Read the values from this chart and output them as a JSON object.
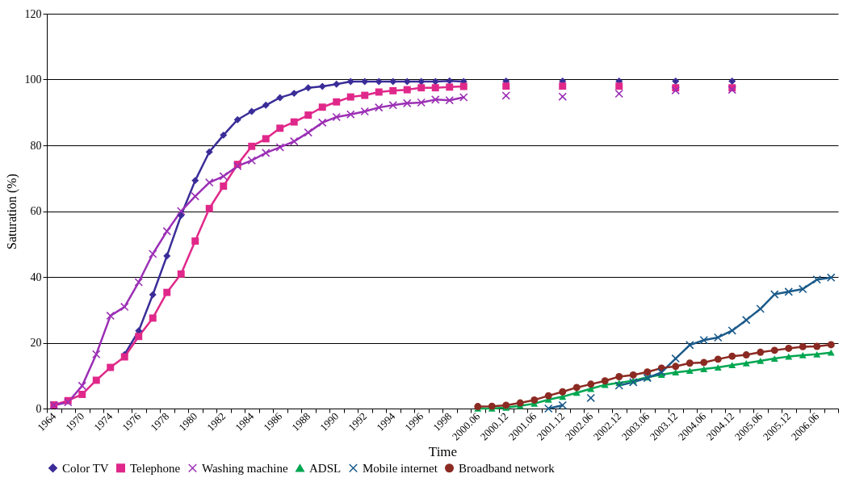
{
  "chart_data": {
    "type": "line",
    "xlabel": "Time",
    "ylabel": "Saturation (%)",
    "categories": [
      "1964",
      null,
      "1970",
      null,
      "1974",
      null,
      "1976",
      null,
      "1978",
      null,
      "1980",
      null,
      "1982",
      null,
      "1984",
      null,
      "1986",
      null,
      "1988",
      null,
      "1990",
      null,
      "1992",
      null,
      "1994",
      null,
      "1996",
      null,
      "1998",
      null,
      "2000.06",
      null,
      "2000.12",
      null,
      "2001.06",
      null,
      "2001.12",
      null,
      "2002.06",
      null,
      "2002.12",
      null,
      "2003.06",
      null,
      "2003.12",
      null,
      "2004.06",
      null,
      "2004.12",
      null,
      "2005.06",
      null,
      "2005.12",
      null,
      "2006.06",
      null
    ],
    "ylim": [
      0,
      120
    ],
    "yticks": [
      0,
      20,
      40,
      60,
      80,
      100,
      120
    ],
    "grid": "y",
    "legend": "bottom",
    "series": [
      {
        "name": "Color TV",
        "color": "#3a2d98",
        "marker": "diamond",
        "values": [
          null,
          null,
          null,
          null,
          null,
          16.4,
          23.6,
          34.6,
          46.4,
          58.7,
          69.3,
          78,
          83.1,
          87.8,
          90.3,
          92.2,
          94.5,
          95.8,
          97.5,
          97.9,
          98.6,
          99.4,
          99.4,
          99.4,
          99.4,
          99.4,
          99.4,
          99.4,
          99.6,
          99.4,
          null,
          null,
          99.5,
          null,
          null,
          null,
          99.5,
          null,
          null,
          null,
          99.5,
          null,
          null,
          null,
          99.5,
          null,
          null,
          null,
          99.5,
          null,
          null,
          null,
          null,
          null,
          null,
          null
        ]
      },
      {
        "name": "Telephone",
        "color": "#e0288a",
        "marker": "square",
        "values": [
          1.1,
          2.4,
          4.3,
          8.6,
          12.5,
          15.7,
          21.9,
          27.5,
          35.3,
          40.9,
          50.9,
          60.8,
          67.6,
          74.2,
          79.7,
          82,
          85.2,
          87.1,
          89.2,
          91.6,
          93.2,
          94.7,
          95.2,
          96.2,
          96.6,
          96.9,
          97.5,
          97.5,
          97.7,
          97.9,
          null,
          null,
          98,
          null,
          null,
          null,
          98,
          null,
          null,
          null,
          98,
          null,
          null,
          null,
          97.5,
          null,
          null,
          null,
          97.5,
          null,
          null,
          null,
          null,
          null,
          null,
          null
        ]
      },
      {
        "name": "Washing machine",
        "color": "#9b2fb5",
        "marker": "cross",
        "values": [
          1,
          1.9,
          6.9,
          16.5,
          28.2,
          30.9,
          38.4,
          47,
          53.9,
          60,
          64.5,
          68.7,
          70.6,
          73.7,
          75.4,
          77.7,
          79.4,
          81.2,
          83.9,
          86.9,
          88.6,
          89.4,
          90.3,
          91.5,
          92.2,
          92.8,
          93,
          93.9,
          93.7,
          94.6,
          null,
          null,
          95.1,
          null,
          null,
          null,
          94.8,
          null,
          null,
          null,
          95.7,
          null,
          null,
          null,
          96.7,
          null,
          null,
          null,
          96.9,
          null,
          null,
          null,
          null,
          null,
          null,
          null
        ]
      },
      {
        "name": "ADSL",
        "color": "#00a650",
        "marker": "triangle",
        "values": [
          null,
          null,
          null,
          null,
          null,
          null,
          null,
          null,
          null,
          null,
          null,
          null,
          null,
          null,
          null,
          null,
          null,
          null,
          null,
          null,
          null,
          null,
          null,
          null,
          null,
          null,
          null,
          null,
          null,
          null,
          0,
          0,
          0.3,
          0.8,
          1.5,
          2.7,
          3.6,
          4.8,
          6,
          7.2,
          7.8,
          8.5,
          9.5,
          10.3,
          11,
          11.5,
          12,
          12.5,
          13.2,
          13.8,
          14.5,
          15.2,
          15.8,
          16.2,
          16.5,
          17
        ]
      },
      {
        "name": "Mobile internet",
        "color": "#1a5a8a",
        "marker": "cross",
        "values": [
          null,
          null,
          null,
          null,
          null,
          null,
          null,
          null,
          null,
          null,
          null,
          null,
          null,
          null,
          null,
          null,
          null,
          null,
          null,
          null,
          null,
          null,
          null,
          null,
          null,
          null,
          null,
          null,
          null,
          null,
          null,
          null,
          null,
          null,
          null,
          0,
          1,
          null,
          3.2,
          null,
          7,
          8,
          9.3,
          11,
          15.2,
          19.3,
          20.8,
          21.6,
          23.7,
          26.9,
          30.3,
          34.7,
          35.5,
          36.3,
          39.2,
          39.8
        ]
      },
      {
        "name": "Broadband network",
        "color": "#8b2a22",
        "marker": "circle",
        "values": [
          null,
          null,
          null,
          null,
          null,
          null,
          null,
          null,
          null,
          null,
          null,
          null,
          null,
          null,
          null,
          null,
          null,
          null,
          null,
          null,
          null,
          null,
          null,
          null,
          null,
          null,
          null,
          null,
          null,
          null,
          0.6,
          0.7,
          1,
          1.7,
          2.6,
          3.9,
          5.1,
          6.4,
          7.4,
          8.4,
          9.7,
          10.2,
          11.1,
          12.3,
          12.8,
          13.8,
          14,
          15,
          15.9,
          16.3,
          17.1,
          17.7,
          18.3,
          18.8,
          18.9,
          19.4
        ]
      }
    ]
  }
}
